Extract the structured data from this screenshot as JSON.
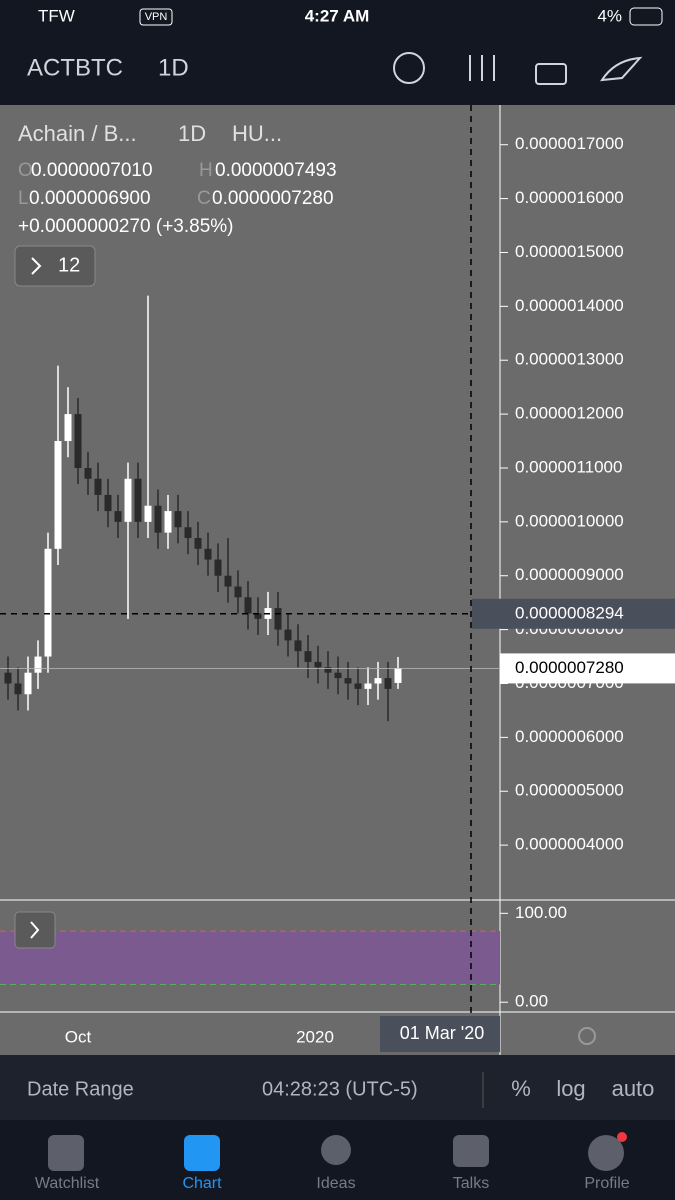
{
  "status_bar": {
    "carrier": "TFW",
    "vpn": "VPN",
    "time": "4:27 AM",
    "battery": "4%"
  },
  "header": {
    "symbol": "ACTBTC",
    "interval": "1D"
  },
  "legend": {
    "name": "Achain / B...",
    "interval": "1D",
    "exchange": "HU...",
    "o_key": "O",
    "o_value": "0.0000007010",
    "h_key": "H",
    "h_value": "0.0000007493",
    "l_key": "L",
    "l_value": "0.0000006900",
    "c_key": "C",
    "c_value": "0.0000007280",
    "change": "+0.0000000270 (+3.85%)",
    "indicators": "12"
  },
  "chart_data": {
    "type": "candlestick",
    "up_color": "#ffffff",
    "down_color": "#2a2a2a",
    "open": [
      7.2e-07,
      7e-07,
      6.8e-07,
      7.2e-07,
      7.5e-07,
      9.5e-07,
      1.15e-06,
      1.2e-06,
      1.1e-06,
      1.08e-06,
      1.05e-06,
      1.02e-06,
      1e-06,
      1.08e-06,
      1e-06,
      1.03e-06,
      9.8e-07,
      1.02e-06,
      9.9e-07,
      9.7e-07,
      9.5e-07,
      9.3e-07,
      9e-07,
      8.8e-07,
      8.6e-07,
      8.3e-07,
      8.2e-07,
      8.4e-07,
      8e-07,
      7.8e-07,
      7.6e-07,
      7.4e-07,
      7.3e-07,
      7.2e-07,
      7.1e-07,
      7e-07,
      6.9e-07,
      7e-07,
      7.1e-07,
      7.01e-07
    ],
    "high": [
      7.5e-07,
      7.3e-07,
      7.5e-07,
      7.8e-07,
      9.8e-07,
      1.29e-06,
      1.25e-06,
      1.23e-06,
      1.13e-06,
      1.11e-06,
      1.08e-06,
      1.05e-06,
      1.11e-06,
      1.11e-06,
      1.42e-06,
      1.06e-06,
      1.05e-06,
      1.05e-06,
      1.02e-06,
      1e-06,
      9.8e-07,
      9.6e-07,
      9.7e-07,
      9.1e-07,
      8.9e-07,
      8.6e-07,
      8.7e-07,
      8.7e-07,
      8.3e-07,
      8.1e-07,
      7.9e-07,
      7.7e-07,
      7.6e-07,
      7.5e-07,
      7.4e-07,
      7.3e-07,
      7.3e-07,
      7.4e-07,
      7.4e-07,
      7.493e-07
    ],
    "low": [
      6.7e-07,
      6.5e-07,
      6.5e-07,
      6.9e-07,
      7.2e-07,
      9.2e-07,
      1.12e-06,
      1.07e-06,
      1.05e-06,
      1.02e-06,
      9.9e-07,
      9.7e-07,
      8.2e-07,
      9.7e-07,
      9.7e-07,
      9.5e-07,
      9.5e-07,
      9.6e-07,
      9.4e-07,
      9.2e-07,
      9e-07,
      8.7e-07,
      8.5e-07,
      8.3e-07,
      8e-07,
      7.9e-07,
      7.9e-07,
      7.7e-07,
      7.5e-07,
      7.3e-07,
      7.1e-07,
      7e-07,
      6.9e-07,
      6.8e-07,
      6.7e-07,
      6.6e-07,
      6.6e-07,
      6.7e-07,
      6.3e-07,
      6.9e-07
    ],
    "close": [
      7e-07,
      6.8e-07,
      7.2e-07,
      7.5e-07,
      9.5e-07,
      1.15e-06,
      1.2e-06,
      1.1e-06,
      1.08e-06,
      1.05e-06,
      1.02e-06,
      1e-06,
      1.08e-06,
      1e-06,
      1.03e-06,
      9.8e-07,
      1.02e-06,
      9.9e-07,
      9.7e-07,
      9.5e-07,
      9.3e-07,
      9e-07,
      8.8e-07,
      8.6e-07,
      8.3e-07,
      8.2e-07,
      8.4e-07,
      8e-07,
      7.8e-07,
      7.6e-07,
      7.4e-07,
      7.3e-07,
      7.2e-07,
      7.1e-07,
      7e-07,
      6.9e-07,
      7e-07,
      7.1e-07,
      6.9e-07,
      7.28e-07
    ],
    "ylim": [
      3e-07,
      1.77e-06
    ],
    "yticks": [
      {
        "value": 1.7e-06,
        "label": "0.0000017000"
      },
      {
        "value": 1.6e-06,
        "label": "0.0000016000"
      },
      {
        "value": 1.5e-06,
        "label": "0.0000015000"
      },
      {
        "value": 1.4e-06,
        "label": "0.0000014000"
      },
      {
        "value": 1.3e-06,
        "label": "0.0000013000"
      },
      {
        "value": 1.2e-06,
        "label": "0.0000012000"
      },
      {
        "value": 1.1e-06,
        "label": "0.0000011000"
      },
      {
        "value": 1e-06,
        "label": "0.0000010000"
      },
      {
        "value": 9e-07,
        "label": "0.0000009000"
      },
      {
        "value": 8e-07,
        "label": "0.0000008000"
      },
      {
        "value": 7e-07,
        "label": "0.0000007000"
      },
      {
        "value": 6e-07,
        "label": "0.0000006000"
      },
      {
        "value": 5e-07,
        "label": "0.0000005000"
      },
      {
        "value": 4e-07,
        "label": "0.0000004000"
      }
    ],
    "crosshair": {
      "value": 8.294e-07,
      "label": "0.0000008294"
    },
    "last_price": {
      "value": 7.28e-07,
      "label": "0.0000007280"
    },
    "oscillator_ylim": [
      -11,
      115
    ],
    "oscillator_yticks": [
      {
        "value": 100,
        "label": "100.00"
      },
      {
        "value": 0,
        "label": "0.00"
      }
    ],
    "x_labels": [
      "Oct",
      "2020"
    ],
    "crosshair_date": "01 Mar '20"
  },
  "toolbar": {
    "date_range": "Date Range",
    "clock": "04:28:23 (UTC-5)",
    "percent": "%",
    "log": "log",
    "auto": "auto"
  },
  "tabs": [
    "Watchlist",
    "Chart",
    "Ideas",
    "Talks",
    "Profile"
  ]
}
